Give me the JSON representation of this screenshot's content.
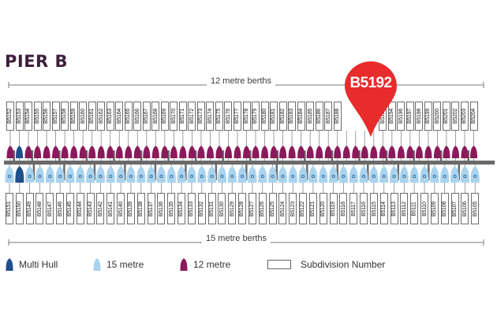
{
  "title": "PIER B",
  "top_range_label": "12 metre berths",
  "bottom_range_label": "15 metre berths",
  "highlight": {
    "berth": "B5192",
    "color": "#e82b2b"
  },
  "colors": {
    "twelve_metre": "#8b1a5c",
    "fifteen_metre": "#a9d3ee",
    "multi_hull": "#1f4e8c",
    "pier": "#6a6a6a"
  },
  "top_berths": [
    {
      "id": "B5152",
      "boat": "12"
    },
    {
      "id": "B5153",
      "boat": "multi"
    },
    {
      "id": "B5154",
      "boat": "12"
    },
    {
      "id": "B5155",
      "boat": "12"
    },
    {
      "id": "B5156",
      "boat": "12"
    },
    {
      "id": "B5157",
      "boat": "12"
    },
    {
      "id": "B5158",
      "boat": "12"
    },
    {
      "id": "B5159",
      "boat": "12"
    },
    {
      "id": "B5160",
      "boat": "12"
    },
    {
      "id": "B5161",
      "boat": "12"
    },
    {
      "id": "B5162",
      "boat": "12"
    },
    {
      "id": "B5163",
      "boat": "12"
    },
    {
      "id": "B5164",
      "boat": "12"
    },
    {
      "id": "B5165",
      "boat": "12"
    },
    {
      "id": "B5166",
      "boat": "12"
    },
    {
      "id": "B5167",
      "boat": "12"
    },
    {
      "id": "B5168",
      "boat": "12"
    },
    {
      "id": "B5169",
      "boat": "12"
    },
    {
      "id": "B5170",
      "boat": "12"
    },
    {
      "id": "B5171",
      "boat": "12"
    },
    {
      "id": "B5172",
      "boat": "12"
    },
    {
      "id": "B5173",
      "boat": "12"
    },
    {
      "id": "B5174",
      "boat": "12"
    },
    {
      "id": "B5175",
      "boat": "12"
    },
    {
      "id": "B5176",
      "boat": "12"
    },
    {
      "id": "B5177",
      "boat": "12"
    },
    {
      "id": "B5178",
      "boat": "12"
    },
    {
      "id": "B5179",
      "boat": "12"
    },
    {
      "id": "B5180",
      "boat": "12"
    },
    {
      "id": "B5181",
      "boat": "12"
    },
    {
      "id": "B5182",
      "boat": "12"
    },
    {
      "id": "B5183",
      "boat": "12"
    },
    {
      "id": "B5184",
      "boat": "12"
    },
    {
      "id": "B5185",
      "boat": "12"
    },
    {
      "id": "B5186",
      "boat": "12"
    },
    {
      "id": "B5187",
      "boat": "12"
    },
    {
      "id": "B5188",
      "boat": "12"
    },
    {
      "id": "",
      "boat": "12"
    },
    {
      "id": "",
      "boat": "12"
    },
    {
      "id": "",
      "boat": "12"
    },
    {
      "id": "",
      "boat": "12"
    },
    {
      "id": "B5193",
      "boat": "12"
    },
    {
      "id": "B5194",
      "boat": "12"
    },
    {
      "id": "B5196",
      "boat": "12"
    },
    {
      "id": "B5197",
      "boat": "12"
    },
    {
      "id": "B5198",
      "boat": "12"
    },
    {
      "id": "B5199",
      "boat": "12"
    },
    {
      "id": "B5200",
      "boat": "12"
    },
    {
      "id": "B5201",
      "boat": "12"
    },
    {
      "id": "B5202",
      "boat": "12"
    },
    {
      "id": "B5203",
      "boat": "12"
    },
    {
      "id": "B5204",
      "boat": "12"
    }
  ],
  "bottom_berths": [
    {
      "id": "B5151",
      "boat": "15"
    },
    {
      "id": "B5150",
      "boat": "multi"
    },
    {
      "id": "B5149",
      "boat": "15"
    },
    {
      "id": "B5148",
      "boat": "15"
    },
    {
      "id": "B5147",
      "boat": "15"
    },
    {
      "id": "B5146",
      "boat": "15"
    },
    {
      "id": "B5145",
      "boat": "15"
    },
    {
      "id": "B5144",
      "boat": "15"
    },
    {
      "id": "B5143",
      "boat": "15"
    },
    {
      "id": "B5142",
      "boat": "15"
    },
    {
      "id": "B5141",
      "boat": "15"
    },
    {
      "id": "B5140",
      "boat": "15"
    },
    {
      "id": "B5139",
      "boat": "15"
    },
    {
      "id": "B5138",
      "boat": "15"
    },
    {
      "id": "B5137",
      "boat": "15"
    },
    {
      "id": "B5136",
      "boat": "15"
    },
    {
      "id": "B5135",
      "boat": "15"
    },
    {
      "id": "B5134",
      "boat": "15"
    },
    {
      "id": "B5133",
      "boat": "15"
    },
    {
      "id": "B5132",
      "boat": "15"
    },
    {
      "id": "B5131",
      "boat": "15"
    },
    {
      "id": "B5130",
      "boat": "15"
    },
    {
      "id": "B5129",
      "boat": "15"
    },
    {
      "id": "B5128",
      "boat": "15"
    },
    {
      "id": "B5127",
      "boat": "15"
    },
    {
      "id": "B5126",
      "boat": "15"
    },
    {
      "id": "B5125",
      "boat": "15"
    },
    {
      "id": "B5124",
      "boat": "15"
    },
    {
      "id": "B5123",
      "boat": "15"
    },
    {
      "id": "B5122",
      "boat": "15"
    },
    {
      "id": "B5121",
      "boat": "15"
    },
    {
      "id": "B5120",
      "boat": "15"
    },
    {
      "id": "B5119",
      "boat": "15"
    },
    {
      "id": "B5118",
      "boat": "15"
    },
    {
      "id": "B5117",
      "boat": "15"
    },
    {
      "id": "B5116",
      "boat": "15"
    },
    {
      "id": "B5115",
      "boat": "15"
    },
    {
      "id": "B5114",
      "boat": "15"
    },
    {
      "id": "B5113",
      "boat": "15"
    },
    {
      "id": "B5112",
      "boat": "15"
    },
    {
      "id": "B5111",
      "boat": "15"
    },
    {
      "id": "B5110",
      "boat": "15"
    },
    {
      "id": "B5109",
      "boat": "15"
    },
    {
      "id": "B5108",
      "boat": "15"
    },
    {
      "id": "B5107",
      "boat": "15"
    },
    {
      "id": "B5106",
      "boat": "15"
    },
    {
      "id": "B5105",
      "boat": "15"
    }
  ],
  "legend": [
    {
      "key": "multi",
      "label": "Multi Hull"
    },
    {
      "key": "15",
      "label": "15 metre"
    },
    {
      "key": "12",
      "label": "12 metre"
    },
    {
      "key": "box",
      "label": "Subdivision Number"
    }
  ]
}
